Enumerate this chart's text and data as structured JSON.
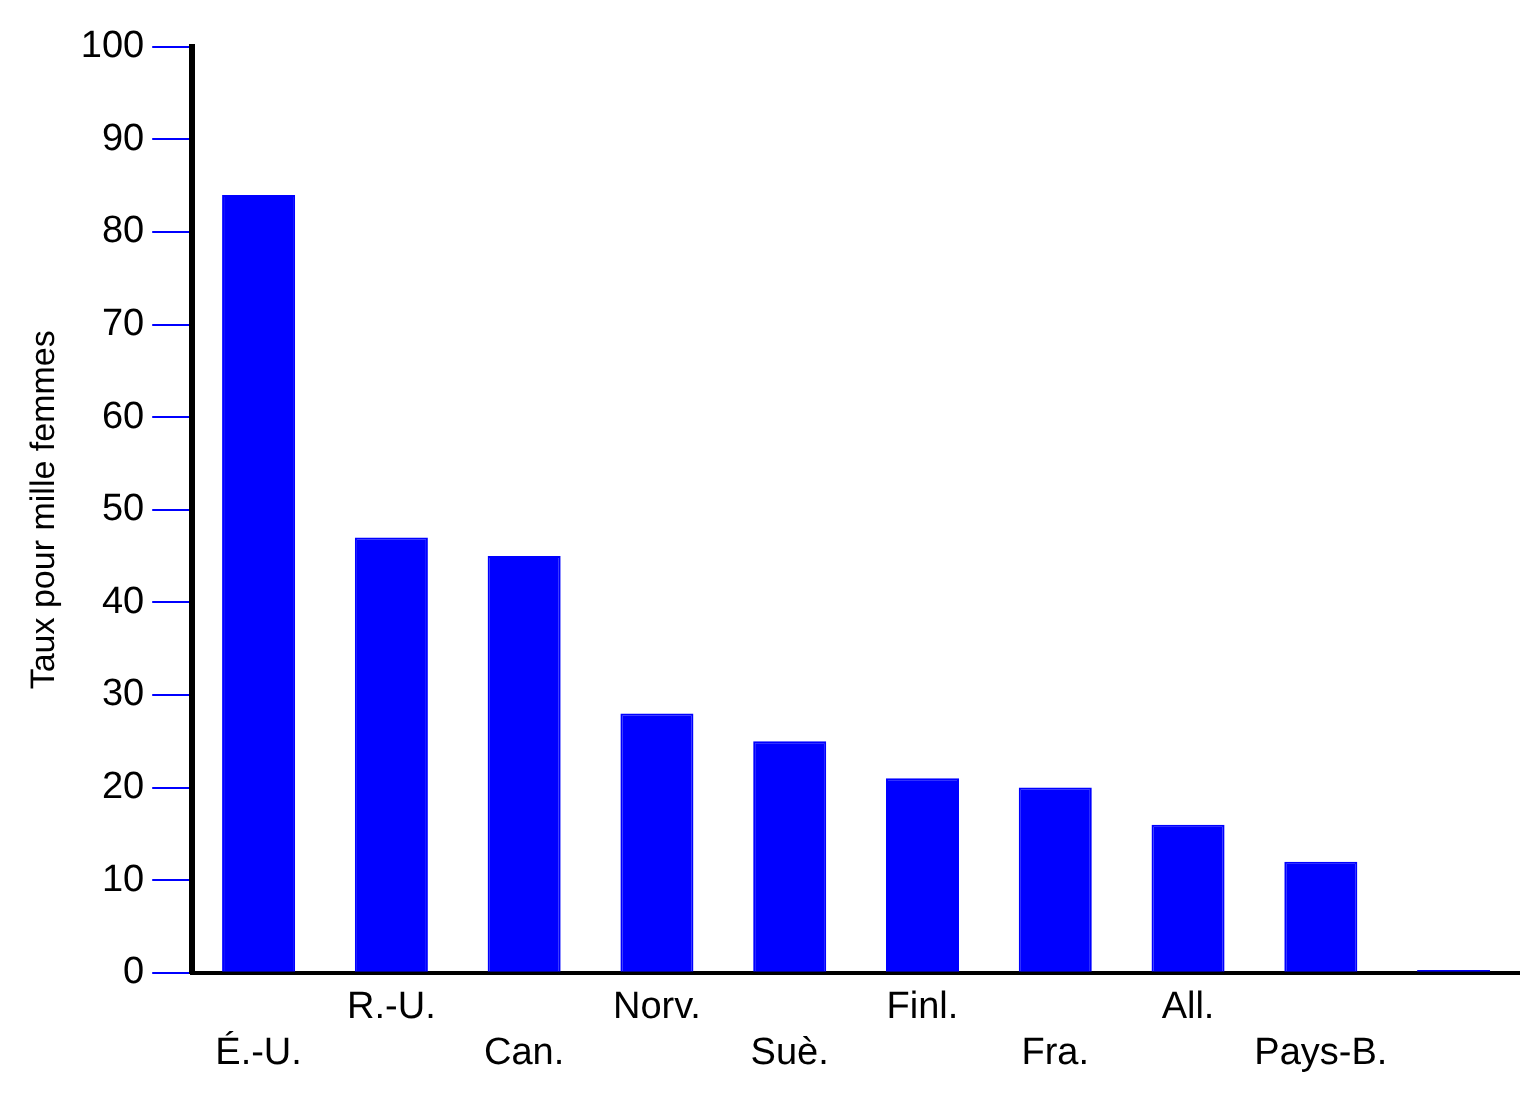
{
  "chart_data": {
    "type": "bar",
    "ylabel": "Taux pour mille femmes",
    "categories": [
      "É.-U.",
      "R.-U.",
      "Can.",
      "Norv.",
      "Suè.",
      "Finl.",
      "Fra.",
      "All.",
      "Pays-B.",
      null
    ],
    "values": [
      84,
      47,
      45,
      28,
      25,
      21,
      20,
      16,
      12,
      0.3
    ],
    "color": "#0000ff",
    "ylim": [
      0,
      100
    ],
    "yticks": [
      0,
      10,
      20,
      30,
      40,
      50,
      60,
      70,
      80,
      90,
      100
    ]
  }
}
